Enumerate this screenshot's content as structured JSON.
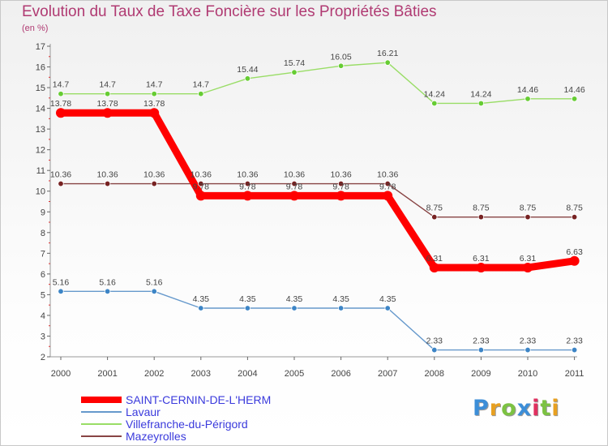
{
  "title": "Evolution du Taux de Taxe Foncière sur les Propriétés Bâties",
  "subtitle": "(en %)",
  "logo": {
    "text": "Proxiti",
    "letter_colors": [
      "#3c8ed8",
      "#e8a020",
      "#7cc242",
      "#3c8ed8",
      "#e03060",
      "#7cc242",
      "#e8a020"
    ]
  },
  "chart_data": {
    "type": "line",
    "title": "Evolution du Taux de Taxe Foncière sur les Propriétés Bâties",
    "ylabel": "(en %)",
    "xlabel": "",
    "ylim": [
      2,
      17
    ],
    "yticks": [
      "2",
      "3",
      "4",
      "5",
      "6",
      "7",
      "8",
      "9",
      "10",
      "11",
      "12",
      "13",
      "14",
      "15",
      "16",
      "17"
    ],
    "categories": [
      "2000",
      "2001",
      "2002",
      "2003",
      "2004",
      "2005",
      "2006",
      "2007",
      "2008",
      "2009",
      "2010",
      "2011"
    ],
    "series": [
      {
        "name": "SAINT-CERNIN-DE-L'HERM",
        "color": "#ff0000",
        "dot_color": "#ff0000",
        "values": [
          13.78,
          13.78,
          13.78,
          9.78,
          9.78,
          9.78,
          9.78,
          9.78,
          6.31,
          6.31,
          6.31,
          6.63
        ],
        "labels": [
          "13.78",
          "13.78",
          "13.78",
          "9.78",
          "9.78",
          "9.78",
          "9.78",
          "9.78",
          "6.31",
          "6.31",
          "6.31",
          "6.63"
        ]
      },
      {
        "name": "Lavaur",
        "color": "#6699cc",
        "dot_color": "#3d85c6",
        "values": [
          5.16,
          5.16,
          5.16,
          4.35,
          4.35,
          4.35,
          4.35,
          4.35,
          2.33,
          2.33,
          2.33,
          2.33
        ],
        "labels": [
          "5.16",
          "5.16",
          "5.16",
          "4.35",
          "4.35",
          "4.35",
          "4.35",
          "4.35",
          "2.33",
          "2.33",
          "2.33",
          "2.33"
        ]
      },
      {
        "name": "Villefranche-du-Périgord",
        "color": "#99dd66",
        "dot_color": "#66cc33",
        "values": [
          14.7,
          14.7,
          14.7,
          14.7,
          15.44,
          15.74,
          16.05,
          16.21,
          14.24,
          14.24,
          14.46,
          14.46
        ],
        "labels": [
          "14.7",
          "14.7",
          "14.7",
          "14.7",
          "15.44",
          "15.74",
          "16.05",
          "16.21",
          "14.24",
          "14.24",
          "14.46",
          "14.46"
        ]
      },
      {
        "name": "Mazeyrolles",
        "color": "#884444",
        "dot_color": "#772222",
        "values": [
          10.36,
          10.36,
          10.36,
          10.36,
          10.36,
          10.36,
          10.36,
          10.36,
          8.75,
          8.75,
          8.75,
          8.75
        ],
        "labels": [
          "10.36",
          "10.36",
          "10.36",
          "10.36",
          "10.36",
          "10.36",
          "10.36",
          "10.36",
          "8.75",
          "8.75",
          "8.75",
          "8.75"
        ]
      }
    ],
    "grid": false,
    "legend_position": "bottom-left"
  }
}
